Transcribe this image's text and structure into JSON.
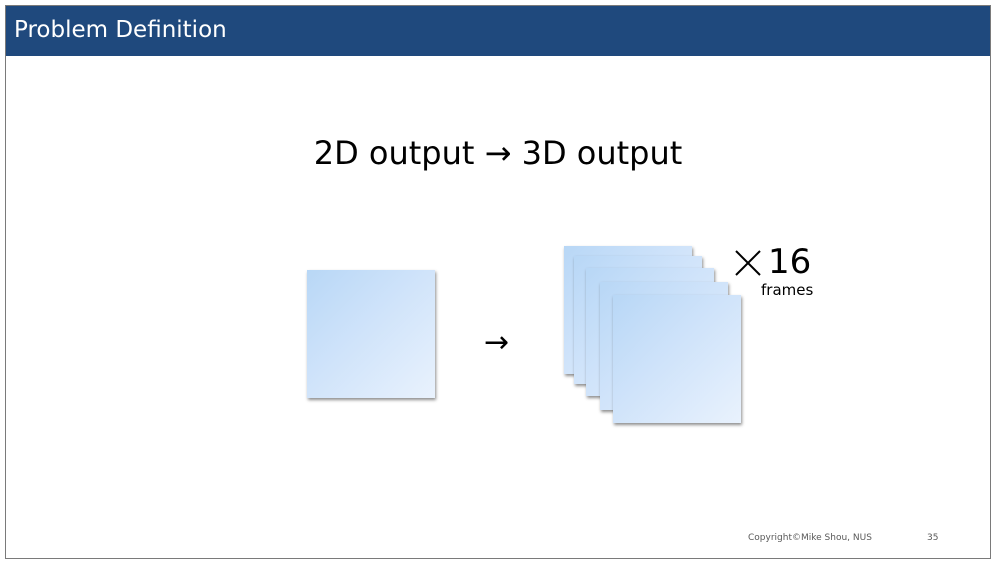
{
  "header": {
    "title": "Problem Definition"
  },
  "slide": {
    "title": "2D output → 3D output",
    "arrow": "→",
    "multiplier_icon": "times-icon",
    "frame_count": "16",
    "frame_unit": "frames"
  },
  "footer": {
    "copyright": "Copyright©Mike Shou, NUS",
    "page_number": "35"
  },
  "colors": {
    "header_bg": "#1f497d",
    "header_text": "#ffffff",
    "frame_gradient_start": "#b8d7f6",
    "frame_gradient_end": "#e9f2fd"
  }
}
